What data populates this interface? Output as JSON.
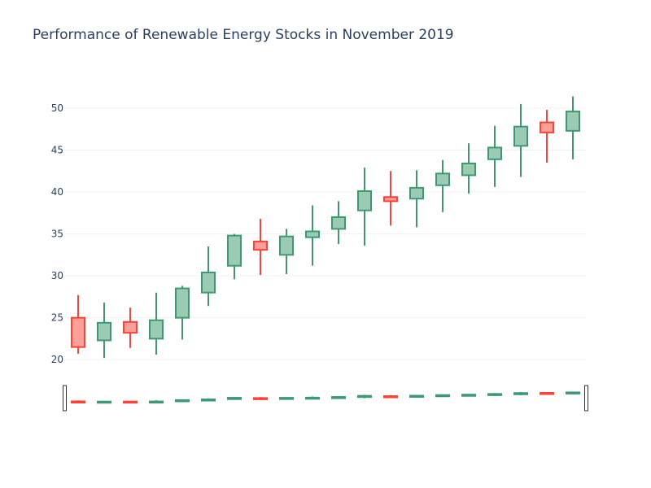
{
  "chart_data": {
    "type": "candlestick",
    "title": "Performance of Renewable Energy Stocks in November 2019",
    "xlabel": "",
    "ylabel": "",
    "ylim": [
      17.3,
      53.2
    ],
    "y_ticks": [
      "20",
      "25",
      "30",
      "35",
      "40",
      "45",
      "50"
    ],
    "grid": true,
    "legend": "none",
    "rangeslider": true,
    "increasing_color": "#3d9970",
    "increasing_fill": "#9ccbb3",
    "decreasing_color": "#ff4136",
    "decreasing_fill": "#ff9f9a",
    "points": [
      {
        "open": 25.0,
        "high": 27.7,
        "low": 20.7,
        "close": 21.5
      },
      {
        "open": 22.3,
        "high": 26.8,
        "low": 20.2,
        "close": 24.4
      },
      {
        "open": 24.5,
        "high": 26.2,
        "low": 21.4,
        "close": 23.2
      },
      {
        "open": 22.5,
        "high": 28.0,
        "low": 20.6,
        "close": 24.7
      },
      {
        "open": 25.0,
        "high": 28.8,
        "low": 22.4,
        "close": 28.5
      },
      {
        "open": 28.0,
        "high": 33.5,
        "low": 26.4,
        "close": 30.4
      },
      {
        "open": 31.2,
        "high": 35.0,
        "low": 29.6,
        "close": 34.8
      },
      {
        "open": 34.1,
        "high": 36.8,
        "low": 30.1,
        "close": 33.1
      },
      {
        "open": 32.5,
        "high": 35.6,
        "low": 30.2,
        "close": 34.7
      },
      {
        "open": 34.6,
        "high": 38.4,
        "low": 31.2,
        "close": 35.3
      },
      {
        "open": 35.6,
        "high": 38.9,
        "low": 33.8,
        "close": 37.0
      },
      {
        "open": 37.8,
        "high": 42.9,
        "low": 33.6,
        "close": 40.1
      },
      {
        "open": 39.4,
        "high": 42.5,
        "low": 36.0,
        "close": 38.9
      },
      {
        "open": 39.2,
        "high": 42.6,
        "low": 35.8,
        "close": 40.5
      },
      {
        "open": 40.8,
        "high": 43.8,
        "low": 37.6,
        "close": 42.2
      },
      {
        "open": 42.0,
        "high": 45.8,
        "low": 39.8,
        "close": 43.4
      },
      {
        "open": 43.9,
        "high": 47.9,
        "low": 40.6,
        "close": 45.3
      },
      {
        "open": 45.5,
        "high": 50.5,
        "low": 41.8,
        "close": 47.8
      },
      {
        "open": 48.3,
        "high": 49.8,
        "low": 43.5,
        "close": 47.1
      },
      {
        "open": 47.3,
        "high": 51.4,
        "low": 43.9,
        "close": 49.6
      }
    ]
  }
}
